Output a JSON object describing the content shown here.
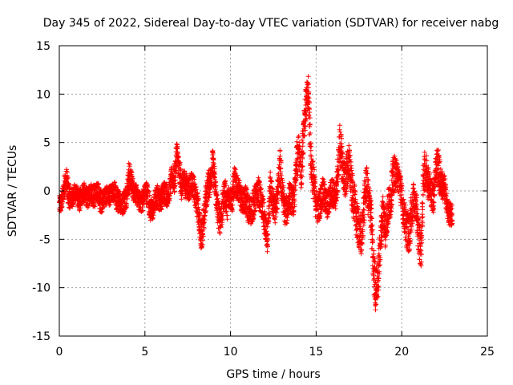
{
  "chart_data": {
    "type": "scatter",
    "title": "Day 345 of 2022, Sidereal Day-to-day VTEC variation (SDTVAR) for receiver nabg",
    "xlabel": "GPS time / hours",
    "ylabel": "SDTVAR / TECUs",
    "xlim": [
      0,
      25
    ],
    "ylim": [
      -15,
      15
    ],
    "xticks": [
      0,
      5,
      10,
      15,
      20,
      25
    ],
    "yticks": [
      -15,
      -10,
      -5,
      0,
      5,
      10,
      15
    ],
    "xtick_labels": [
      "0",
      "5",
      "10",
      "15",
      "20",
      "25"
    ],
    "ytick_labels": [
      "-15",
      "-10",
      "-5",
      "0",
      "5",
      "10",
      "15"
    ],
    "grid": true,
    "marker": "+",
    "color": "#ff0000",
    "sample_interval_hours": 0.01,
    "series": [
      {
        "name": "nabg",
        "x_start": 0.0,
        "y_center": [
          -1.5,
          -1.2,
          0.5,
          1.0,
          -0.5,
          -0.8,
          -0.5,
          0.0,
          -1.0,
          -0.8,
          0.0,
          -0.5,
          -0.8,
          0.0,
          -0.5,
          -0.5,
          0.0,
          -1.0,
          -1.0,
          -0.5,
          -0.5,
          -0.5,
          -0.3,
          0.0,
          -1.0,
          -1.0,
          -1.5,
          -1.0,
          -0.5,
          1.5,
          1.0,
          0.0,
          -0.3,
          -1.0,
          -1.2,
          -0.8,
          0.0,
          -0.5,
          -2.0,
          -2.0,
          -1.0,
          -0.5,
          -1.0,
          -0.5,
          0.0,
          -0.5,
          0.0,
          1.5,
          1.0,
          4.0,
          2.0,
          0.5,
          1.0,
          0.5,
          0.0,
          1.0,
          0.5,
          -1.0,
          -2.0,
          -4.5,
          -4.0,
          -1.0,
          0.5,
          1.0,
          3.0,
          0.5,
          -2.0,
          -3.0,
          -2.0,
          0.0,
          -1.5,
          -0.5,
          -1.0,
          1.0,
          0.5,
          0.0,
          -1.0,
          -1.0,
          -1.0,
          -2.0,
          -2.0,
          -1.5,
          -0.5,
          0.0,
          -1.0,
          -2.0,
          -4.0,
          -5.0,
          0.5,
          -1.0,
          -2.0,
          -0.5,
          2.5,
          0.0,
          -2.0,
          -2.0,
          -0.5,
          -1.0,
          -1.0,
          3.0,
          4.0,
          2.0,
          7.0,
          9.0,
          10.0,
          3.0,
          1.0,
          -1.0,
          -2.0,
          -1.0,
          0.0,
          -1.0,
          -1.5,
          -0.5,
          0.0,
          -1.0,
          1.0,
          5.0,
          3.0,
          1.0,
          2.0,
          3.0,
          0.0,
          -1.0,
          -3.0,
          -4.0,
          -5.0,
          -2.0,
          1.0,
          -1.0,
          -2.0,
          -8.0,
          -10.0,
          -9.0,
          -5.0,
          -2.0,
          -4.0,
          -2.0,
          -1.0,
          1.0,
          2.0,
          1.5,
          1.0,
          -1.0,
          -3.0,
          -4.0,
          -4.5,
          -2.0,
          -1.0,
          -2.0,
          -5.0,
          -6.0,
          2.0,
          2.0,
          1.0,
          0.0,
          -1.0,
          2.5,
          2.5,
          1.0,
          0.5,
          0.0,
          -2.0,
          -2.5
        ],
        "spread": [
          1.0,
          1.0,
          1.2,
          1.5,
          1.2,
          1.0,
          1.0,
          1.0,
          1.2,
          1.0,
          1.0,
          1.0,
          1.0,
          1.0,
          1.2,
          1.0,
          1.2,
          1.2,
          1.0,
          1.0,
          1.0,
          1.0,
          1.0,
          1.2,
          1.2,
          1.0,
          1.2,
          1.2,
          1.2,
          1.5,
          1.2,
          1.0,
          1.0,
          1.0,
          1.2,
          1.0,
          1.2,
          1.2,
          1.2,
          1.0,
          1.2,
          1.2,
          1.2,
          1.2,
          1.2,
          1.0,
          1.2,
          1.2,
          1.5,
          1.5,
          1.5,
          1.2,
          1.5,
          1.2,
          1.2,
          1.2,
          1.2,
          1.5,
          1.5,
          1.5,
          1.5,
          1.5,
          1.5,
          1.5,
          1.5,
          1.5,
          1.5,
          1.5,
          1.5,
          1.5,
          1.5,
          1.2,
          1.5,
          1.5,
          1.2,
          1.2,
          1.2,
          1.5,
          1.5,
          1.5,
          1.5,
          1.5,
          1.2,
          1.5,
          1.5,
          1.5,
          1.5,
          1.5,
          1.5,
          1.5,
          1.5,
          1.5,
          2.0,
          1.5,
          1.5,
          1.5,
          1.5,
          1.5,
          1.5,
          2.0,
          2.0,
          2.0,
          2.0,
          2.0,
          2.0,
          2.0,
          2.0,
          1.5,
          1.5,
          1.5,
          1.5,
          1.5,
          1.5,
          1.5,
          1.5,
          1.5,
          2.0,
          2.0,
          2.0,
          2.0,
          2.0,
          2.0,
          2.0,
          2.0,
          2.0,
          2.0,
          2.0,
          2.0,
          2.0,
          2.0,
          2.0,
          2.5,
          2.0,
          2.0,
          2.0,
          2.0,
          2.0,
          2.0,
          2.0,
          2.0,
          1.5,
          1.5,
          1.5,
          1.5,
          2.0,
          2.0,
          2.0,
          2.0,
          1.5,
          2.0,
          2.0,
          2.0,
          2.0,
          2.0,
          1.5,
          1.5,
          1.5,
          2.0,
          2.0,
          1.5,
          1.5,
          1.2,
          1.2,
          1.2
        ]
      }
    ]
  }
}
